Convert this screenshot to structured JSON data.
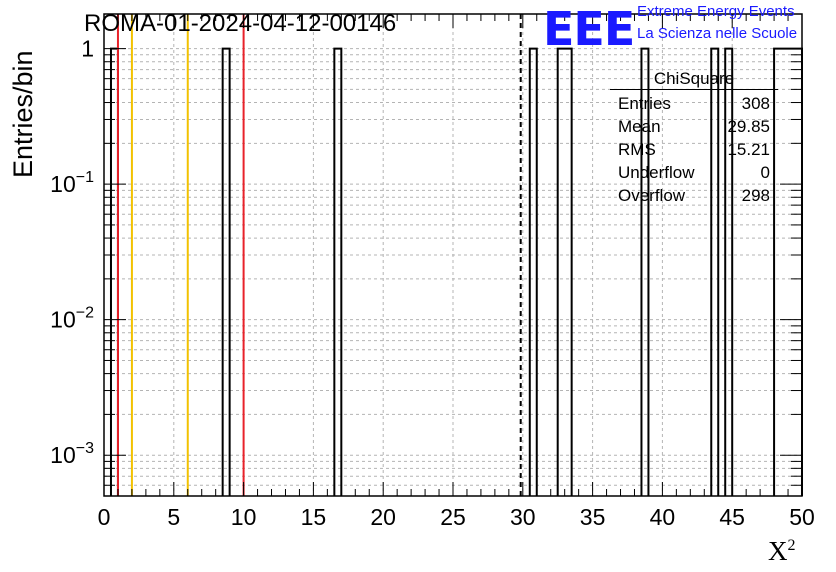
{
  "header": {
    "title": "ROMA-01-2024-04-12-00146",
    "logo_text": "EEE",
    "logo_line1": "Extreme Energy Events",
    "logo_line2": "La Scienza nelle Scuole"
  },
  "stats_box": {
    "title": "ChiSquare",
    "rows": [
      {
        "label": "Entries",
        "value": "308"
      },
      {
        "label": "Mean",
        "value": "29.85"
      },
      {
        "label": "RMS",
        "value": "15.21"
      },
      {
        "label": "Underflow",
        "value": "0"
      },
      {
        "label": "Overflow",
        "value": "298"
      }
    ]
  },
  "chart_data": {
    "type": "bar",
    "title": "ROMA-01-2024-04-12-00146",
    "xlabel": "X",
    "xlabel_superscript": "2",
    "ylabel": "Entries/bin",
    "xlim": [
      0,
      50
    ],
    "ylim": [
      0.0005,
      1.8
    ],
    "yscale": "log",
    "grid": true,
    "bin_width": 0.5,
    "bins": [
      {
        "x0": 0.5,
        "x1": 1.0,
        "value": 1
      },
      {
        "x0": 8.5,
        "x1": 9.0,
        "value": 1
      },
      {
        "x0": 16.5,
        "x1": 17.0,
        "value": 1
      },
      {
        "x0": 30.5,
        "x1": 31.0,
        "value": 1
      },
      {
        "x0": 32.5,
        "x1": 33.5,
        "value": 1
      },
      {
        "x0": 38.5,
        "x1": 39.0,
        "value": 1
      },
      {
        "x0": 43.5,
        "x1": 44.0,
        "value": 1
      },
      {
        "x0": 44.5,
        "x1": 45.0,
        "value": 1
      },
      {
        "x0": 48.0,
        "x1": 50.0,
        "value": 1
      }
    ],
    "x_ticks": [
      "0",
      "5",
      "10",
      "15",
      "20",
      "25",
      "30",
      "35",
      "40",
      "45",
      "50"
    ],
    "y_ticks": [
      {
        "value": 1,
        "label": "1"
      },
      {
        "value": 0.1,
        "base": "10",
        "exp": "−1"
      },
      {
        "value": 0.01,
        "base": "10",
        "exp": "−2"
      },
      {
        "value": 0.001,
        "base": "10",
        "exp": "−3"
      }
    ],
    "vlines": [
      {
        "x": 1,
        "color": "#e8222a",
        "style": "solid"
      },
      {
        "x": 2,
        "color": "#f2c200",
        "style": "solid"
      },
      {
        "x": 6,
        "color": "#f2c200",
        "style": "solid"
      },
      {
        "x": 10,
        "color": "#e8222a",
        "style": "solid"
      },
      {
        "x": 29.85,
        "color": "#000000",
        "style": "dashed"
      }
    ]
  }
}
